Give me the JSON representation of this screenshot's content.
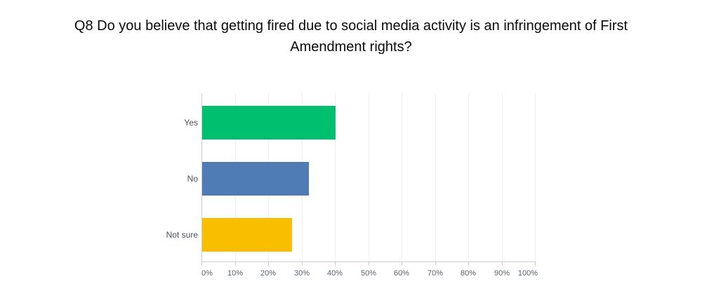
{
  "page": {
    "background": "#ffffff"
  },
  "chart": {
    "title": "Q8 Do you believe that getting fired due to social media activity is an infringement of First Amendment rights?",
    "title_lines": [
      "Q8 Do you believe that getting fired due to social media activity is an infringement of First",
      "Amendment rights?"
    ]
  },
  "chart_data": {
    "type": "bar",
    "orientation": "horizontal",
    "title": "Q8 Do you believe that getting fired due to social media activity is an infringement of First Amendment rights?",
    "categories": [
      "Yes",
      "No",
      "Not sure"
    ],
    "values": [
      40,
      32,
      27
    ],
    "value_unit": "percent",
    "x_ticks": [
      "0%",
      "10%",
      "20%",
      "30%",
      "40%",
      "50%",
      "60%",
      "70%",
      "80%",
      "90%",
      "100%"
    ],
    "xlim": [
      0,
      100
    ],
    "grid": true,
    "legend_position": "none",
    "bar_colors": [
      "#00BF6F",
      "#507CB5",
      "#F9BE00"
    ],
    "colors": {
      "title_text": "#0b0b0b",
      "axis_line": "#C9CCCE",
      "gridline": "#EDEEEF",
      "tick_label": "#5A636D",
      "category_label": "#47515B"
    }
  }
}
